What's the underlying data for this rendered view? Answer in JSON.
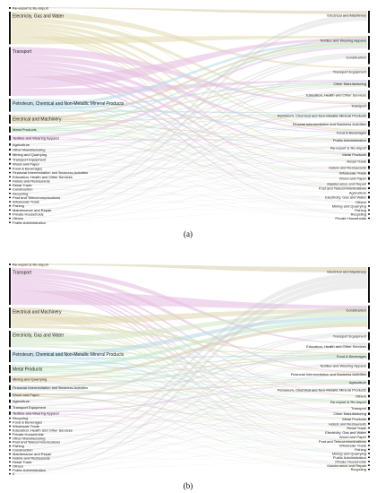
{
  "panels": [
    {
      "caption": "(a)",
      "left_nodes": [
        {
          "label": "Re-export & Re-import",
          "weight": 0.4,
          "color": "#d9d2b0"
        },
        {
          "label": "Electricity, Gas and Water",
          "weight": 8,
          "color": "#e4dcb4"
        },
        {
          "label": "Transport",
          "weight": 12,
          "color": "#e6bfe3"
        },
        {
          "label": "Petroleum, Chemical and Non-Metallic Mineral Products",
          "weight": 3.2,
          "color": "#b9dce6"
        },
        {
          "label": "Electrical and Machinery",
          "weight": 2.2,
          "color": "#d9d0ae"
        },
        {
          "label": "Metal Products",
          "weight": 1.5,
          "color": "#bfe8c8"
        },
        {
          "label": "Textiles and Wearing Apparel",
          "weight": 1.2,
          "color": "#e8c6e4"
        },
        {
          "label": "Agriculture",
          "weight": 0.6,
          "color": "#cccccc"
        },
        {
          "label": "Other Manufacturing",
          "weight": 0.5,
          "color": "#cccccc"
        },
        {
          "label": "Mining and Quarrying",
          "weight": 0.5,
          "color": "#cccccc"
        },
        {
          "label": "Transport Equipment",
          "weight": 0.4,
          "color": "#cccccc"
        },
        {
          "label": "Wood and Paper",
          "weight": 0.4,
          "color": "#cccccc"
        },
        {
          "label": "Food & Beverages",
          "weight": 0.4,
          "color": "#cccccc"
        },
        {
          "label": "Financial Intermediation and Business Activities",
          "weight": 0.3,
          "color": "#cccccc"
        },
        {
          "label": "Education, Health and Other Services",
          "weight": 0.25,
          "color": "#cccccc"
        },
        {
          "label": "Hotels and Restaurants",
          "weight": 0.2,
          "color": "#cccccc"
        },
        {
          "label": "Retail Trade",
          "weight": 0.2,
          "color": "#cccccc"
        },
        {
          "label": "Construction",
          "weight": 0.2,
          "color": "#cccccc"
        },
        {
          "label": "Recycling",
          "weight": 0.15,
          "color": "#cccccc"
        },
        {
          "label": "Post and Telecommunications",
          "weight": 0.15,
          "color": "#cccccc"
        },
        {
          "label": "Wholesale Trade",
          "weight": 0.15,
          "color": "#cccccc"
        },
        {
          "label": "Fishing",
          "weight": 0.1,
          "color": "#cccccc"
        },
        {
          "label": "Maintenance and Repair",
          "weight": 0.1,
          "color": "#cccccc"
        },
        {
          "label": "Private Households",
          "weight": 0.1,
          "color": "#cccccc"
        },
        {
          "label": "Others",
          "weight": 0.1,
          "color": "#cccccc"
        },
        {
          "label": "Public Administration",
          "weight": 0.1,
          "color": "#cccccc"
        }
      ],
      "right_nodes": [
        {
          "label": "Electrical and Machinery",
          "weight": 3.5
        },
        {
          "label": "Textiles and Wearing Apparel",
          "weight": 2.2
        },
        {
          "label": "Construction",
          "weight": 1.8
        },
        {
          "label": "Transport Equipment",
          "weight": 1.6
        },
        {
          "label": "Other Manufacturing",
          "weight": 1.2
        },
        {
          "label": "Education, Health and Other Services",
          "weight": 1.4
        },
        {
          "label": "Transport",
          "weight": 1.2
        },
        {
          "label": "Petroleum, Chemical and Non-Metallic Mineral Products",
          "weight": 0.9
        },
        {
          "label": "Finacial Intermediation and Business Activities",
          "weight": 0.9
        },
        {
          "label": "Food & Beverages",
          "weight": 0.9
        },
        {
          "label": "Public Administration",
          "weight": 0.7
        },
        {
          "label": "Re-export & Re-import",
          "weight": 0.7
        },
        {
          "label": "Metal Products",
          "weight": 0.6
        },
        {
          "label": "Retail Trade",
          "weight": 0.6
        },
        {
          "label": "Hotels and Restaurants",
          "weight": 0.5
        },
        {
          "label": "Wholesale Trade",
          "weight": 0.4
        },
        {
          "label": "Wood and Paper",
          "weight": 0.4
        },
        {
          "label": "Maintenance and Repair",
          "weight": 0.3
        },
        {
          "label": "Post and Telecommunications",
          "weight": 0.3
        },
        {
          "label": "Agriculture",
          "weight": 0.2
        },
        {
          "label": "Electricity, Gas and Water",
          "weight": 0.4
        },
        {
          "label": "Others",
          "weight": 0.1
        },
        {
          "label": "Mining and Quarrying",
          "weight": 0.1
        },
        {
          "label": "Fishing",
          "weight": 0.1
        },
        {
          "label": "Recycling",
          "weight": 0.1
        },
        {
          "label": "Private Households",
          "weight": 0.1
        }
      ]
    },
    {
      "caption": "(b)",
      "left_nodes": [
        {
          "label": "Re-export & Re-import",
          "weight": 0.4,
          "color": "#d9d2b0"
        },
        {
          "label": "Transport",
          "weight": 9,
          "color": "#e6bfe3"
        },
        {
          "label": "Electrical and Machinery",
          "weight": 5,
          "color": "#e0d8b2"
        },
        {
          "label": "Electricity, Gas and Water",
          "weight": 4,
          "color": "#d6e6c8"
        },
        {
          "label": "Petroleum, Chemical and Non-Metallic Mineral Products",
          "weight": 3,
          "color": "#b9dce6"
        },
        {
          "label": "Metal Products",
          "weight": 2,
          "color": "#bfe8c8"
        },
        {
          "label": "Mining and Quarrying",
          "weight": 1.6,
          "color": "#d9d0ae"
        },
        {
          "label": "Financial Intermediation and Business Activities",
          "weight": 1.2,
          "color": "#cfe0d8"
        },
        {
          "label": "Wood and Paper",
          "weight": 1.0,
          "color": "#d6d0b4"
        },
        {
          "label": "Agriculture",
          "weight": 0.8,
          "color": "#cccccc"
        },
        {
          "label": "Transport Equipment",
          "weight": 0.8,
          "color": "#cccccc"
        },
        {
          "label": "Textiles and Wearing Apparel",
          "weight": 0.8,
          "color": "#e8c6e4"
        },
        {
          "label": "Recycling",
          "weight": 0.2,
          "color": "#cccccc"
        },
        {
          "label": "Food & Beverages",
          "weight": 0.3,
          "color": "#cccccc"
        },
        {
          "label": "Wholesale Trade",
          "weight": 0.2,
          "color": "#cccccc"
        },
        {
          "label": "Education, Health and Other Services",
          "weight": 0.2,
          "color": "#cccccc"
        },
        {
          "label": "Private Households",
          "weight": 0.15,
          "color": "#cccccc"
        },
        {
          "label": "Other Manufacturing",
          "weight": 0.15,
          "color": "#cccccc"
        },
        {
          "label": "Post and Telecommunications",
          "weight": 0.15,
          "color": "#cccccc"
        },
        {
          "label": "Fishing",
          "weight": 0.1,
          "color": "#cccccc"
        },
        {
          "label": "Construction",
          "weight": 0.1,
          "color": "#cccccc"
        },
        {
          "label": "Maintenance and Repair",
          "weight": 0.1,
          "color": "#cccccc"
        },
        {
          "label": "Hotels and Restaurants",
          "weight": 0.1,
          "color": "#cccccc"
        },
        {
          "label": "Retail Trade",
          "weight": 0.1,
          "color": "#cccccc"
        },
        {
          "label": "Others",
          "weight": 0.1,
          "color": "#cccccc"
        },
        {
          "label": "Public Administration",
          "weight": 0.1,
          "color": "#cccccc"
        },
        {
          "label": "0",
          "weight": 0.05,
          "color": "#cccccc"
        }
      ],
      "right_nodes": [
        {
          "label": "Electrical and Machinery",
          "weight": 6
        },
        {
          "label": "Construction",
          "weight": 4
        },
        {
          "label": "Transport Equipment",
          "weight": 1.4
        },
        {
          "label": "Education, Health and Other Services",
          "weight": 1.2
        },
        {
          "label": "Food & Beverages",
          "weight": 1.2
        },
        {
          "label": "Textiles and Wearing Apparel",
          "weight": 1.0
        },
        {
          "label": "Financial Intermediation and Business Activities",
          "weight": 1.0
        },
        {
          "label": "Agriculture",
          "weight": 0.8
        },
        {
          "label": "Petroleum, Chemical and Non-Metallic Mineral Products",
          "weight": 0.8
        },
        {
          "label": "Others",
          "weight": 0.4
        },
        {
          "label": "Re-export & Re-import",
          "weight": 0.7
        },
        {
          "label": "Transport",
          "weight": 0.5
        },
        {
          "label": "Other Manufacturing",
          "weight": 0.4
        },
        {
          "label": "Metal Products",
          "weight": 0.4
        },
        {
          "label": "Hotels and Restaurants",
          "weight": 0.3
        },
        {
          "label": "Retail Trade",
          "weight": 0.2
        },
        {
          "label": "Electricity, Gas and Water",
          "weight": 0.3
        },
        {
          "label": "Wood and Paper",
          "weight": 0.3
        },
        {
          "label": "Post and Telecommunications",
          "weight": 0.3
        },
        {
          "label": "Wholesale Trade",
          "weight": 0.2
        },
        {
          "label": "Fishing",
          "weight": 0.1
        },
        {
          "label": "Mining and Quarrying",
          "weight": 0.1
        },
        {
          "label": "Public Administration",
          "weight": 0.1
        },
        {
          "label": "Private Households",
          "weight": 0.1
        },
        {
          "label": "Maintenance and Repair",
          "weight": 0.1
        },
        {
          "label": "Recycling",
          "weight": 0.1
        }
      ]
    }
  ]
}
